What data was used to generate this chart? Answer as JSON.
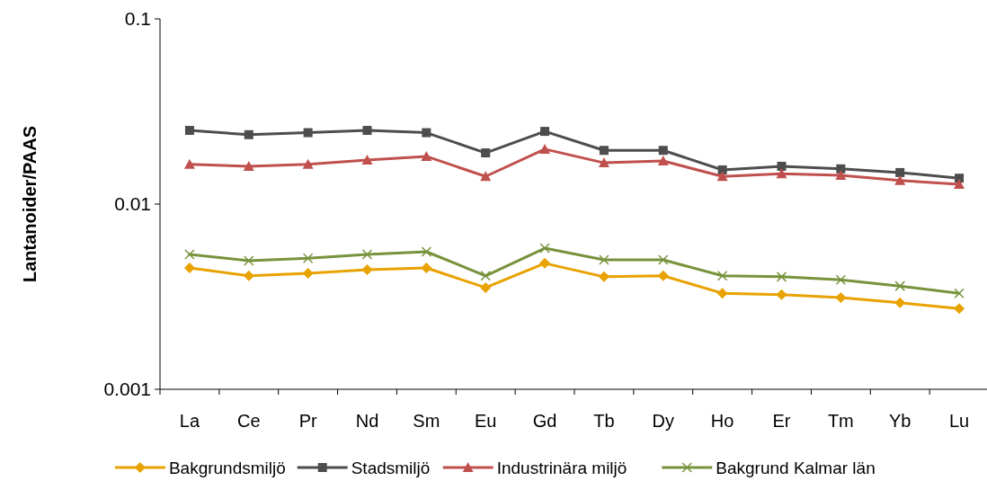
{
  "chart_data": {
    "type": "line",
    "ylabel": "Lantanoider/PAAS",
    "log": true,
    "ylim": [
      0.001,
      0.1
    ],
    "yticks": [
      0.001,
      0.01,
      0.1
    ],
    "grid": false,
    "legend": "bottom",
    "line_style": "solid",
    "categories": [
      "La",
      "Ce",
      "Pr",
      "Nd",
      "Sm",
      "Eu",
      "Gd",
      "Tb",
      "Dy",
      "Ho",
      "Er",
      "Tm",
      "Yb",
      "Lu"
    ],
    "series": [
      {
        "name": "Bakgrundsmiljö",
        "color": "#e8a202",
        "marker": "diamond",
        "values": [
          0.00452,
          0.0041,
          0.00423,
          0.00442,
          0.00452,
          0.00354,
          0.00479,
          0.00405,
          0.0041,
          0.0033,
          0.00324,
          0.00313,
          0.00293,
          0.00273
        ]
      },
      {
        "name": "Stadsmiljö",
        "color": "#4d4d4d",
        "marker": "square",
        "values": [
          0.025,
          0.0237,
          0.0243,
          0.025,
          0.0243,
          0.0189,
          0.0247,
          0.0195,
          0.0195,
          0.0153,
          0.016,
          0.0155,
          0.0148,
          0.0138
        ]
      },
      {
        "name": "Industrinära miljö",
        "color": "#c0504d",
        "marker": "triangle",
        "values": [
          0.0164,
          0.016,
          0.0164,
          0.0173,
          0.0181,
          0.0141,
          0.0198,
          0.0167,
          0.0171,
          0.0141,
          0.0146,
          0.0143,
          0.0134,
          0.0128
        ]
      },
      {
        "name": "Bakgrund Kalmar län",
        "color": "#77933c",
        "marker": "cross",
        "values": [
          0.00535,
          0.00495,
          0.0051,
          0.00535,
          0.00553,
          0.0041,
          0.00578,
          0.005,
          0.005,
          0.0041,
          0.00405,
          0.0039,
          0.00361,
          0.0033
        ]
      }
    ]
  }
}
